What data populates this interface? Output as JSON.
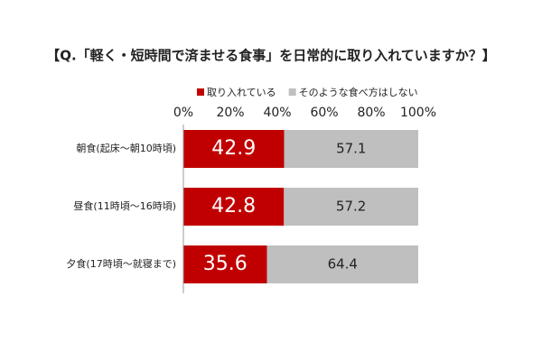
{
  "chart_data": {
    "type": "stacked-bar-horizontal",
    "title": "【Q.「軽く・短時間で済ませる食事」を日常的に取り入れていますか？】",
    "categories": [
      "朝食(起床～朝10時頃)",
      "昼食(11時頃～16時頃)",
      "夕食(17時頃～就寝まで)"
    ],
    "series": [
      {
        "name": "取り入れている",
        "color": "#c00000",
        "values": [
          42.9,
          42.8,
          35.6
        ]
      },
      {
        "name": "そのような食べ方はしない",
        "color": "#bfbfbf",
        "values": [
          57.1,
          57.2,
          64.4
        ]
      }
    ],
    "xlim": [
      0,
      100
    ],
    "xticks": [
      {
        "value": 0,
        "label": "0%"
      },
      {
        "value": 20,
        "label": "20%"
      },
      {
        "value": 40,
        "label": "40%"
      },
      {
        "value": 60,
        "label": "60%"
      },
      {
        "value": 80,
        "label": "80%"
      },
      {
        "value": 100,
        "label": "100%"
      }
    ],
    "legend": "top"
  }
}
